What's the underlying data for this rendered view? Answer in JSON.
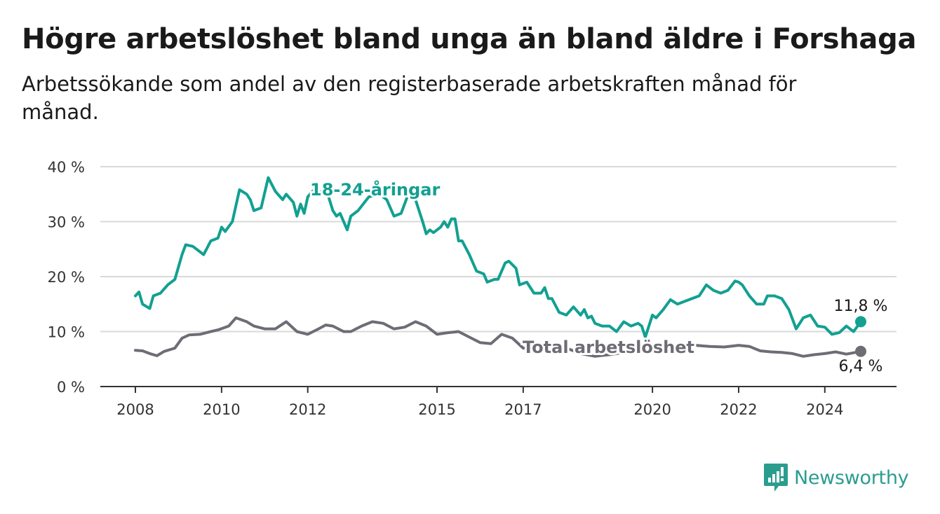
{
  "title": "Högre arbetslöshet bland unga än bland äldre i Forshaga",
  "subtitle": "Arbetssökande som andel av den registerbaserade arbetskraften månad för månad.",
  "brand": "Newsworthy",
  "colors": {
    "youth": "#12a091",
    "total": "#6e6c75",
    "grid": "#d9d9d9",
    "axis": "#333333",
    "brand": "#2a9d8f"
  },
  "chart_data": {
    "type": "line",
    "x_ticks": [
      "2008",
      "2010",
      "2012",
      "2015",
      "2017",
      "2020",
      "2022",
      "2024"
    ],
    "y_ticks": [
      "0 %",
      "10 %",
      "20 %",
      "30 %",
      "40 %"
    ],
    "ylim": [
      0,
      40
    ],
    "xlim": [
      "2008-01",
      "2024-11"
    ],
    "grid": true,
    "series": [
      {
        "name": "18-24-åringar",
        "end_label": "11,8 %",
        "points": [
          [
            "2008-01",
            16.5
          ],
          [
            "2008-02",
            17.2
          ],
          [
            "2008-03",
            15.0
          ],
          [
            "2008-05",
            14.2
          ],
          [
            "2008-06",
            16.5
          ],
          [
            "2008-08",
            17.0
          ],
          [
            "2008-10",
            18.5
          ],
          [
            "2008-12",
            19.5
          ],
          [
            "2009-02",
            24.0
          ],
          [
            "2009-03",
            25.8
          ],
          [
            "2009-05",
            25.5
          ],
          [
            "2009-08",
            24.0
          ],
          [
            "2009-10",
            26.5
          ],
          [
            "2009-12",
            27.0
          ],
          [
            "2010-01",
            29.0
          ],
          [
            "2010-02",
            28.2
          ],
          [
            "2010-04",
            30.0
          ],
          [
            "2010-06",
            35.8
          ],
          [
            "2010-08",
            35.0
          ],
          [
            "2010-09",
            34.0
          ],
          [
            "2010-10",
            32.0
          ],
          [
            "2010-12",
            32.5
          ],
          [
            "2011-02",
            38.0
          ],
          [
            "2011-04",
            35.5
          ],
          [
            "2011-06",
            34.0
          ],
          [
            "2011-07",
            35.0
          ],
          [
            "2011-09",
            33.5
          ],
          [
            "2011-10",
            31.0
          ],
          [
            "2011-11",
            33.2
          ],
          [
            "2011-12",
            31.5
          ],
          [
            "2012-01",
            34.5
          ],
          [
            "2012-03",
            36.0
          ],
          [
            "2012-04",
            35.0
          ],
          [
            "2012-06",
            36.2
          ],
          [
            "2012-08",
            32.0
          ],
          [
            "2012-09",
            31.0
          ],
          [
            "2012-10",
            31.5
          ],
          [
            "2012-12",
            28.5
          ],
          [
            "2013-01",
            31.0
          ],
          [
            "2013-03",
            32.0
          ],
          [
            "2013-06",
            34.5
          ],
          [
            "2013-09",
            35.0
          ],
          [
            "2013-11",
            34.0
          ],
          [
            "2014-01",
            31.0
          ],
          [
            "2014-03",
            31.5
          ],
          [
            "2014-05",
            35.0
          ],
          [
            "2014-07",
            34.0
          ],
          [
            "2014-09",
            30.0
          ],
          [
            "2014-10",
            27.8
          ],
          [
            "2014-11",
            28.5
          ],
          [
            "2014-12",
            28.0
          ],
          [
            "2015-02",
            29.0
          ],
          [
            "2015-03",
            30.0
          ],
          [
            "2015-04",
            29.0
          ],
          [
            "2015-05",
            30.5
          ],
          [
            "2015-06",
            30.5
          ],
          [
            "2015-07",
            26.5
          ],
          [
            "2015-08",
            26.5
          ],
          [
            "2015-10",
            24.0
          ],
          [
            "2015-12",
            21.0
          ],
          [
            "2016-02",
            20.5
          ],
          [
            "2016-03",
            19.0
          ],
          [
            "2016-05",
            19.5
          ],
          [
            "2016-06",
            19.5
          ],
          [
            "2016-08",
            22.5
          ],
          [
            "2016-09",
            22.8
          ],
          [
            "2016-11",
            21.5
          ],
          [
            "2016-12",
            18.5
          ],
          [
            "2017-02",
            19.0
          ],
          [
            "2017-04",
            17.0
          ],
          [
            "2017-06",
            17.0
          ],
          [
            "2017-07",
            18.0
          ],
          [
            "2017-08",
            16.0
          ],
          [
            "2017-09",
            16.0
          ],
          [
            "2017-11",
            13.5
          ],
          [
            "2018-01",
            13.0
          ],
          [
            "2018-03",
            14.5
          ],
          [
            "2018-05",
            13.0
          ],
          [
            "2018-06",
            14.0
          ],
          [
            "2018-07",
            12.5
          ],
          [
            "2018-08",
            12.8
          ],
          [
            "2018-09",
            11.5
          ],
          [
            "2018-11",
            11.0
          ],
          [
            "2019-01",
            11.0
          ],
          [
            "2019-03",
            10.0
          ],
          [
            "2019-05",
            11.8
          ],
          [
            "2019-07",
            11.0
          ],
          [
            "2019-09",
            11.5
          ],
          [
            "2019-10",
            11.0
          ],
          [
            "2019-11",
            9.0
          ],
          [
            "2020-01",
            13.0
          ],
          [
            "2020-02",
            12.5
          ],
          [
            "2020-04",
            14.0
          ],
          [
            "2020-06",
            15.8
          ],
          [
            "2020-08",
            15.0
          ],
          [
            "2020-10",
            15.5
          ],
          [
            "2020-12",
            16.0
          ],
          [
            "2021-02",
            16.5
          ],
          [
            "2021-04",
            18.5
          ],
          [
            "2021-06",
            17.5
          ],
          [
            "2021-08",
            17.0
          ],
          [
            "2021-10",
            17.5
          ],
          [
            "2021-12",
            19.2
          ],
          [
            "2022-01",
            19.0
          ],
          [
            "2022-02",
            18.5
          ],
          [
            "2022-04",
            16.5
          ],
          [
            "2022-06",
            15.0
          ],
          [
            "2022-08",
            15.0
          ],
          [
            "2022-09",
            16.5
          ],
          [
            "2022-11",
            16.5
          ],
          [
            "2023-01",
            16.0
          ],
          [
            "2023-03",
            14.0
          ],
          [
            "2023-05",
            10.5
          ],
          [
            "2023-07",
            12.5
          ],
          [
            "2023-09",
            13.0
          ],
          [
            "2023-11",
            11.0
          ],
          [
            "2024-01",
            10.8
          ],
          [
            "2024-03",
            9.5
          ],
          [
            "2024-05",
            9.8
          ],
          [
            "2024-07",
            11.0
          ],
          [
            "2024-09",
            10.0
          ],
          [
            "2024-11",
            11.8
          ]
        ]
      },
      {
        "name": "Total arbetslöshet",
        "end_label": "6,4 %",
        "points": [
          [
            "2008-01",
            6.6
          ],
          [
            "2008-03",
            6.5
          ],
          [
            "2008-05",
            6.0
          ],
          [
            "2008-07",
            5.6
          ],
          [
            "2008-09",
            6.4
          ],
          [
            "2008-12",
            7.0
          ],
          [
            "2009-02",
            8.8
          ],
          [
            "2009-04",
            9.4
          ],
          [
            "2009-07",
            9.5
          ],
          [
            "2009-10",
            10.0
          ],
          [
            "2009-12",
            10.3
          ],
          [
            "2010-03",
            11.0
          ],
          [
            "2010-05",
            12.5
          ],
          [
            "2010-08",
            11.8
          ],
          [
            "2010-10",
            11.0
          ],
          [
            "2011-01",
            10.5
          ],
          [
            "2011-04",
            10.5
          ],
          [
            "2011-07",
            11.8
          ],
          [
            "2011-10",
            10.0
          ],
          [
            "2012-01",
            9.5
          ],
          [
            "2012-04",
            10.5
          ],
          [
            "2012-06",
            11.2
          ],
          [
            "2012-08",
            11.0
          ],
          [
            "2012-11",
            10.0
          ],
          [
            "2013-01",
            10.0
          ],
          [
            "2013-04",
            11.0
          ],
          [
            "2013-07",
            11.8
          ],
          [
            "2013-10",
            11.5
          ],
          [
            "2014-01",
            10.5
          ],
          [
            "2014-04",
            10.8
          ],
          [
            "2014-07",
            11.8
          ],
          [
            "2014-10",
            11.0
          ],
          [
            "2015-01",
            9.5
          ],
          [
            "2015-04",
            9.8
          ],
          [
            "2015-07",
            10.0
          ],
          [
            "2015-10",
            9.0
          ],
          [
            "2016-01",
            8.0
          ],
          [
            "2016-04",
            7.8
          ],
          [
            "2016-07",
            9.5
          ],
          [
            "2016-10",
            8.8
          ],
          [
            "2017-01",
            7.0
          ],
          [
            "2017-04",
            7.0
          ],
          [
            "2017-07",
            7.5
          ],
          [
            "2017-10",
            7.5
          ],
          [
            "2018-01",
            7.0
          ],
          [
            "2018-05",
            6.0
          ],
          [
            "2018-09",
            5.5
          ],
          [
            "2019-01",
            5.8
          ],
          [
            "2019-05",
            6.2
          ],
          [
            "2019-09",
            6.5
          ],
          [
            "2020-01",
            7.0
          ],
          [
            "2020-05",
            7.6
          ],
          [
            "2020-09",
            7.4
          ],
          [
            "2021-01",
            7.5
          ],
          [
            "2021-05",
            7.3
          ],
          [
            "2021-09",
            7.2
          ],
          [
            "2022-01",
            7.5
          ],
          [
            "2022-04",
            7.3
          ],
          [
            "2022-07",
            6.5
          ],
          [
            "2022-10",
            6.3
          ],
          [
            "2023-01",
            6.2
          ],
          [
            "2023-04",
            6.0
          ],
          [
            "2023-07",
            5.5
          ],
          [
            "2023-10",
            5.8
          ],
          [
            "2024-01",
            6.0
          ],
          [
            "2024-04",
            6.3
          ],
          [
            "2024-07",
            5.9
          ],
          [
            "2024-11",
            6.4
          ]
        ]
      }
    ]
  }
}
